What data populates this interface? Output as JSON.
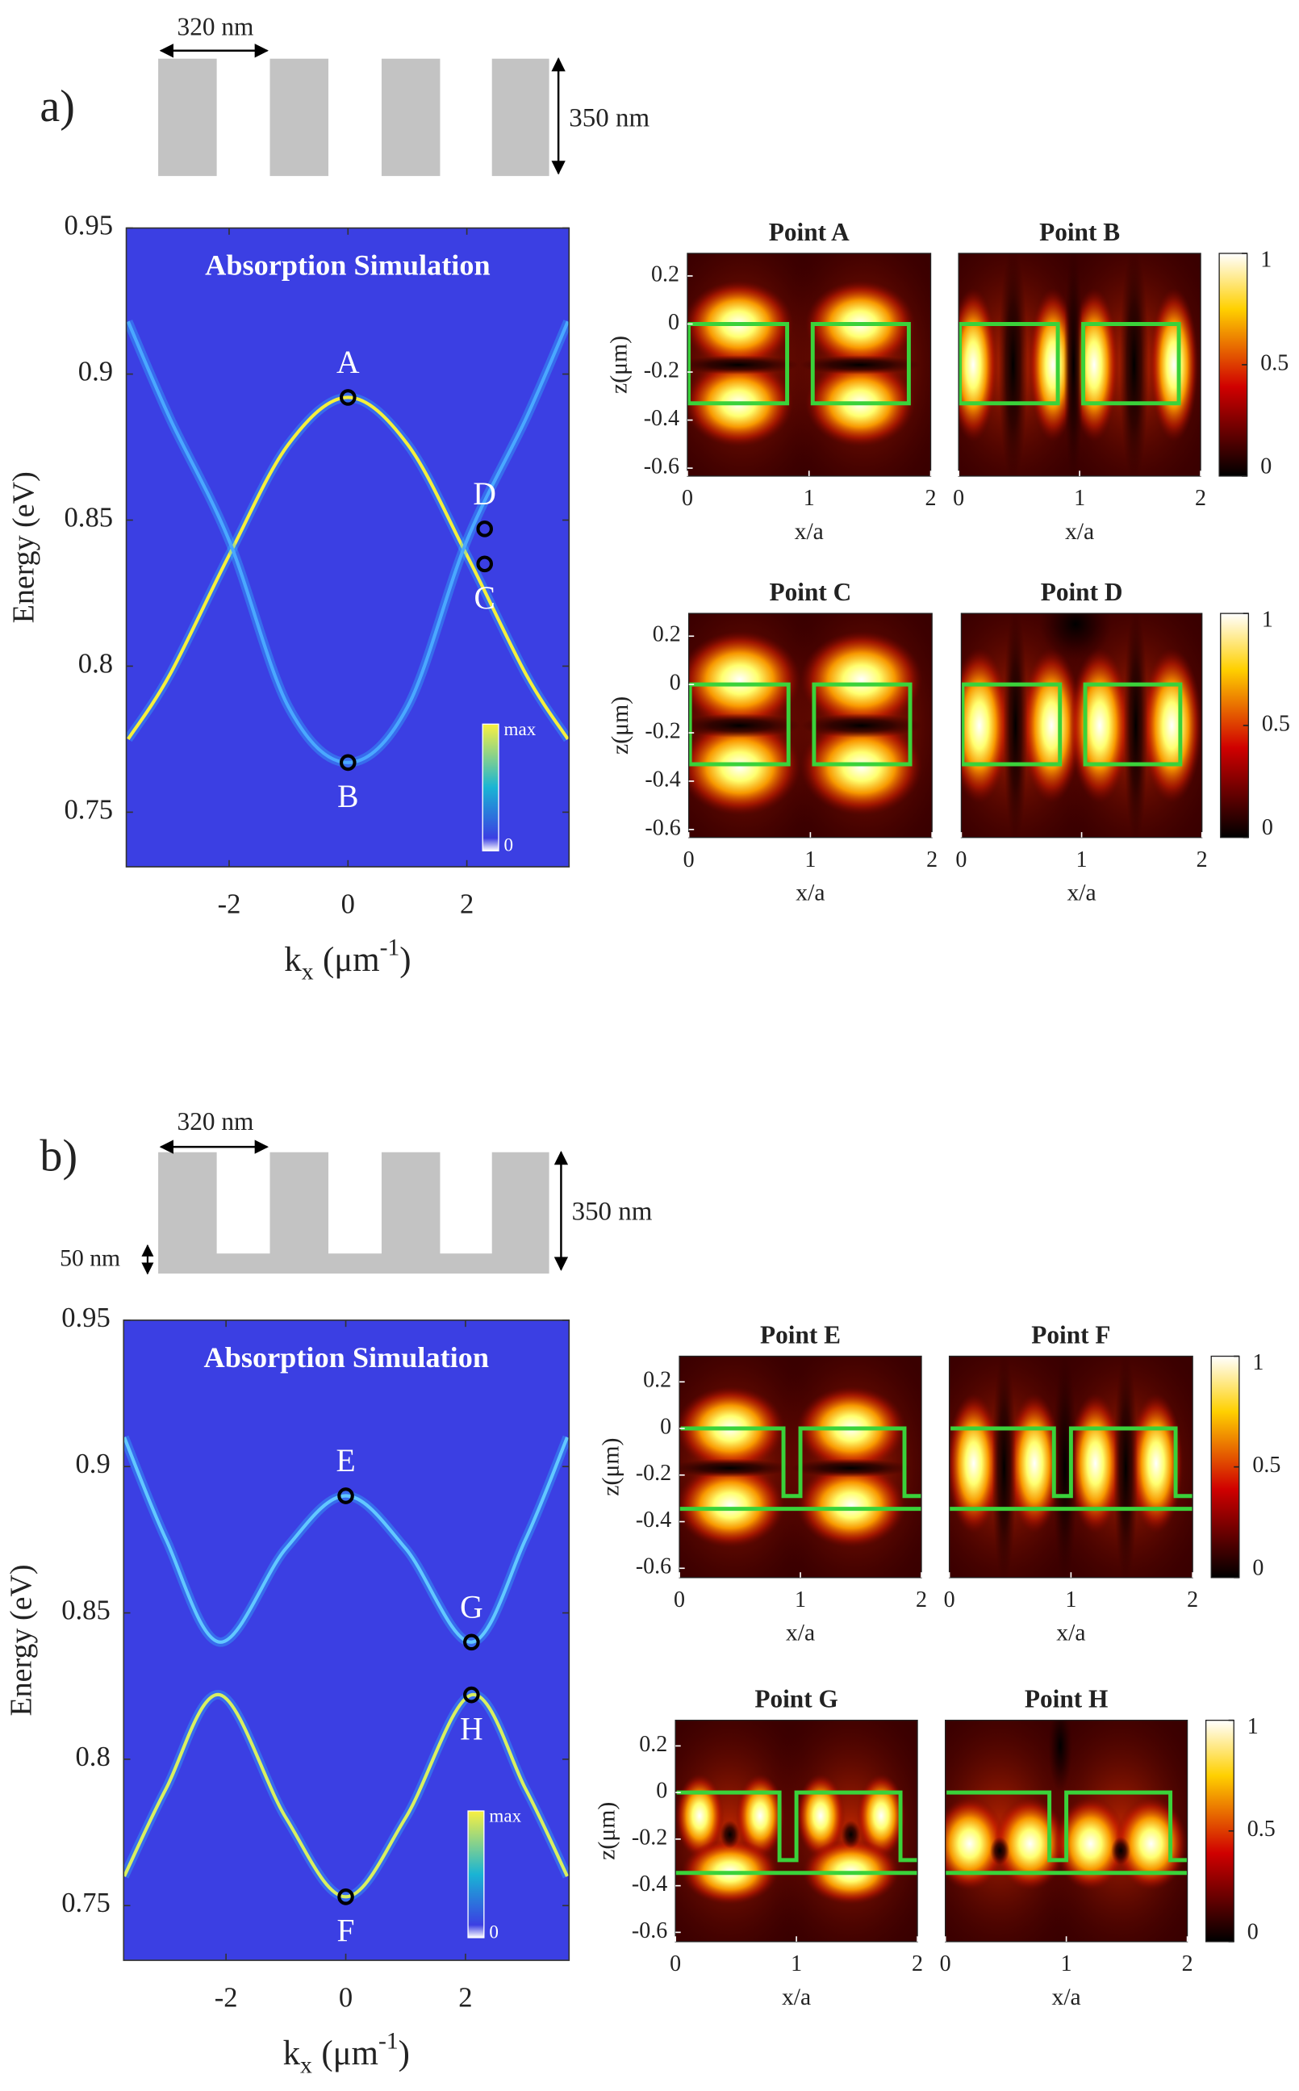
{
  "diagrams": [
    {
      "label": "a)",
      "period": "320 nm",
      "height": "350 nm"
    },
    {
      "label": "b)",
      "period": "320 nm",
      "height": "350 nm",
      "base": "50 nm"
    }
  ],
  "chart_data": [
    {
      "type": "band",
      "title": "Absorption Simulation",
      "background": "#3b3fe3",
      "xlabel": {
        "base": "k",
        "sub": "x",
        "unit": "(μm",
        "sup": "-1",
        "close": ")"
      },
      "ylabel": "Energy (eV)",
      "xlim": [
        -3.73,
        3.72
      ],
      "ylim": [
        0.7313,
        0.95
      ],
      "xticks": [
        -2,
        0,
        2
      ],
      "yticks": [
        0.75,
        0.8,
        0.85,
        0.9,
        0.95
      ],
      "series": [
        {
          "color": "#f4f03c",
          "x": [
            -3.7,
            -3,
            -2,
            -1,
            0,
            1,
            2,
            3,
            3.7
          ],
          "values": [
            0.775,
            0.797,
            0.838,
            0.876,
            0.892,
            0.876,
            0.838,
            0.797,
            0.775
          ]
        },
        {
          "color": "#4aa8ff",
          "x": [
            -3.7,
            -3,
            -2,
            -1,
            0,
            1,
            2,
            3,
            3.7
          ],
          "values": [
            0.918,
            0.885,
            0.843,
            0.786,
            0.767,
            0.786,
            0.843,
            0.885,
            0.918
          ]
        }
      ],
      "points": {
        "labels": [
          "A",
          "B",
          "C",
          "D"
        ],
        "x": [
          0,
          0,
          2.3,
          2.3
        ],
        "y": [
          0.892,
          0.767,
          0.835,
          0.847
        ],
        "label_side": [
          "above",
          "below",
          "below",
          "above"
        ]
      },
      "colorbar": {
        "labels": [
          "max",
          "0"
        ]
      }
    },
    {
      "type": "field",
      "title": "Point A",
      "pattern": "A",
      "structure": "slab",
      "xlabel": "x/a",
      "ylabel": "z(μm)",
      "xlim": [
        0,
        2
      ],
      "ylim": [
        -0.633,
        0.294
      ],
      "xticks": [
        0,
        1,
        2
      ],
      "yticks": [
        0.2,
        0,
        -0.2,
        -0.4,
        -0.6
      ]
    },
    {
      "type": "field",
      "title": "Point B",
      "pattern": "B",
      "structure": "slab",
      "xlabel": "x/a",
      "xlim": [
        0,
        2
      ],
      "ylim": [
        -0.633,
        0.294
      ],
      "xticks": [
        0,
        1,
        2
      ],
      "colorbar": {
        "lim": [
          0,
          1
        ],
        "ticks": [
          0,
          0.5,
          1
        ]
      }
    },
    {
      "type": "field",
      "title": "Point C",
      "pattern": "C",
      "structure": "slab",
      "xlabel": "x/a",
      "ylabel": "z(μm)",
      "xlim": [
        0,
        2
      ],
      "ylim": [
        -0.633,
        0.294
      ],
      "xticks": [
        0,
        1,
        2
      ],
      "yticks": [
        0.2,
        0,
        -0.2,
        -0.4,
        -0.6
      ]
    },
    {
      "type": "field",
      "title": "Point D",
      "pattern": "D",
      "structure": "slab",
      "xlabel": "x/a",
      "xlim": [
        0,
        2
      ],
      "ylim": [
        -0.633,
        0.294
      ],
      "xticks": [
        0,
        1,
        2
      ],
      "colorbar": {
        "lim": [
          0,
          1
        ],
        "ticks": [
          0,
          0.5,
          1
        ]
      }
    },
    {
      "type": "band",
      "title": "Absorption Simulation",
      "background": "#3b3fe3",
      "xlabel": {
        "base": "k",
        "sub": "x",
        "unit": "(μm",
        "sup": "-1",
        "close": ")"
      },
      "ylabel": "Energy (eV)",
      "xlim": [
        -3.71,
        3.73
      ],
      "ylim": [
        0.7313,
        0.95
      ],
      "xticks": [
        -2,
        0,
        2
      ],
      "yticks": [
        0.75,
        0.8,
        0.85,
        0.9,
        0.95
      ],
      "series": [
        {
          "color": "#62c8ff",
          "x": [
            -3.7,
            -3,
            -2.1,
            -1,
            0,
            1,
            2.1,
            3,
            3.7
          ],
          "values": [
            0.91,
            0.875,
            0.84,
            0.872,
            0.89,
            0.872,
            0.84,
            0.875,
            0.91
          ]
        },
        {
          "color": "#d8f060",
          "x": [
            -3.7,
            -3,
            -2.1,
            -1,
            0,
            1,
            2.1,
            3,
            3.7
          ],
          "values": [
            0.76,
            0.79,
            0.822,
            0.78,
            0.753,
            0.78,
            0.822,
            0.79,
            0.76
          ]
        }
      ],
      "points": {
        "labels": [
          "E",
          "F",
          "G",
          "H"
        ],
        "x": [
          0,
          0,
          2.1,
          2.1
        ],
        "y": [
          0.89,
          0.753,
          0.84,
          0.822
        ],
        "label_side": [
          "above",
          "below",
          "above",
          "below"
        ]
      },
      "colorbar": {
        "labels": [
          "max",
          "0"
        ]
      }
    },
    {
      "type": "field",
      "title": "Point E",
      "pattern": "A",
      "structure": "grating",
      "xlabel": "x/a",
      "ylabel": "z(μm)",
      "xlim": [
        0,
        2
      ],
      "ylim": [
        -0.64,
        0.31
      ],
      "xticks": [
        0,
        1,
        2
      ],
      "yticks": [
        0.2,
        0,
        -0.2,
        -0.4,
        -0.6
      ]
    },
    {
      "type": "field",
      "title": "Point F",
      "pattern": "F",
      "structure": "grating",
      "xlabel": "x/a",
      "xlim": [
        0,
        2
      ],
      "ylim": [
        -0.64,
        0.31
      ],
      "xticks": [
        0,
        1,
        2
      ],
      "colorbar": {
        "lim": [
          0,
          1
        ],
        "ticks": [
          0,
          0.5,
          1
        ]
      }
    },
    {
      "type": "field",
      "title": "Point G",
      "pattern": "G",
      "structure": "grating",
      "xlabel": "x/a",
      "ylabel": "z(μm)",
      "xlim": [
        0,
        2
      ],
      "ylim": [
        -0.64,
        0.31
      ],
      "xticks": [
        0,
        1,
        2
      ],
      "yticks": [
        0.2,
        0,
        -0.2,
        -0.4,
        -0.6
      ]
    },
    {
      "type": "field",
      "title": "Point H",
      "pattern": "H",
      "structure": "grating",
      "xlabel": "x/a",
      "xlim": [
        0,
        2
      ],
      "ylim": [
        -0.64,
        0.31
      ],
      "xticks": [
        0,
        1,
        2
      ],
      "colorbar": {
        "lim": [
          0,
          1
        ],
        "ticks": [
          0,
          0.5,
          1
        ]
      }
    }
  ]
}
